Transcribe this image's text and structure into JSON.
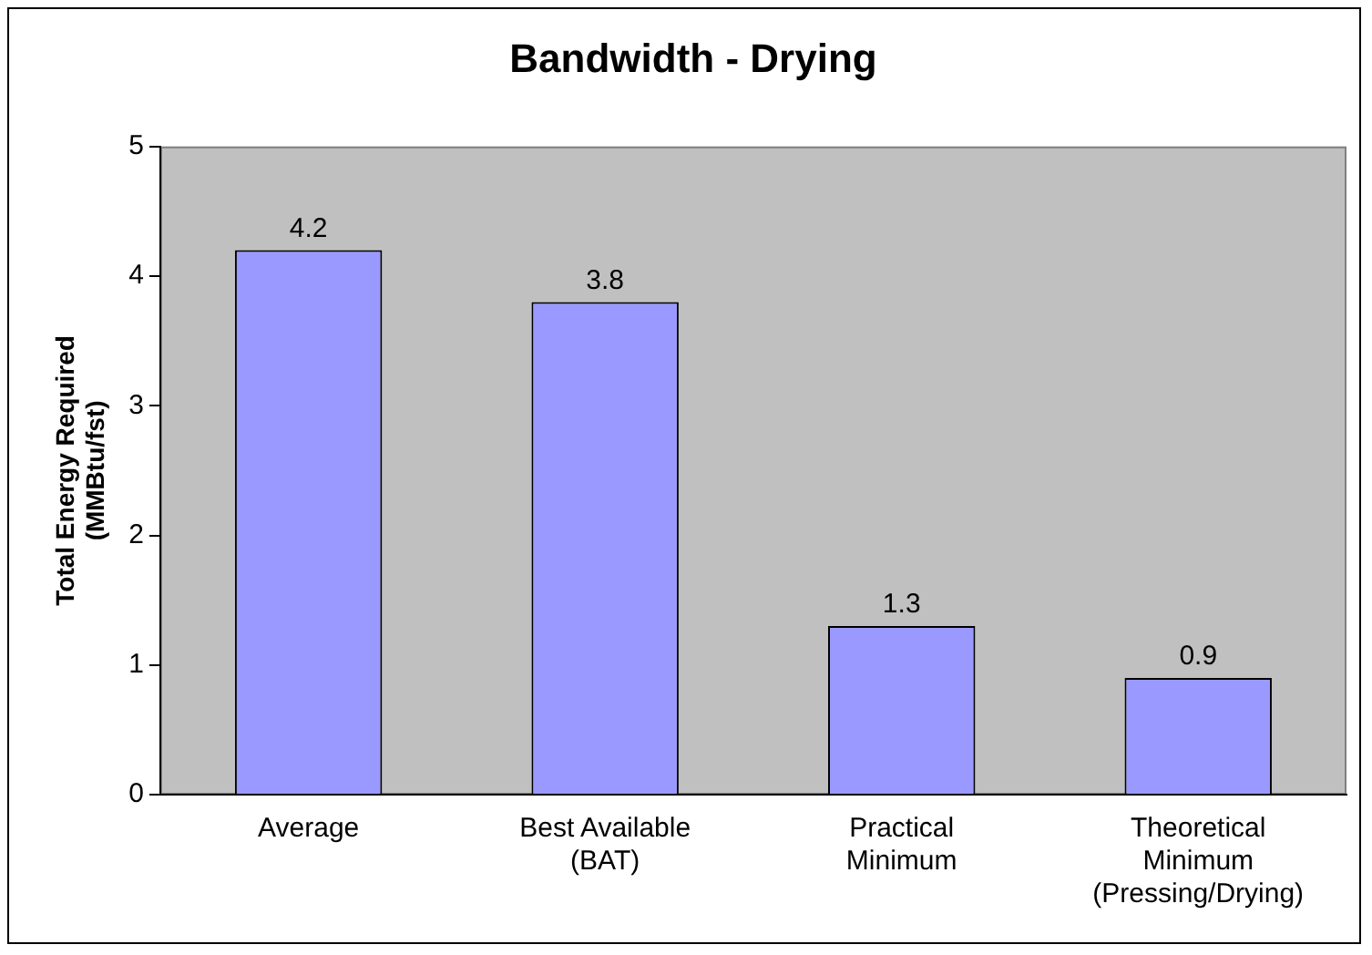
{
  "chart_data": {
    "type": "bar",
    "title": "Bandwidth - Drying",
    "ylabel": "Total Energy Required (MMBtu/fst)",
    "categories": [
      "Average",
      "Best Available (BAT)",
      "Practical Minimum",
      "Theoretical Minimum (Pressing/Drying)"
    ],
    "values": [
      4.2,
      3.8,
      1.3,
      0.9
    ],
    "color": "#9999ff",
    "ylim": [
      0,
      5
    ],
    "yticks": [
      0,
      1,
      2,
      3,
      4,
      5
    ],
    "grid": false,
    "legend": false,
    "data_labels": true
  }
}
